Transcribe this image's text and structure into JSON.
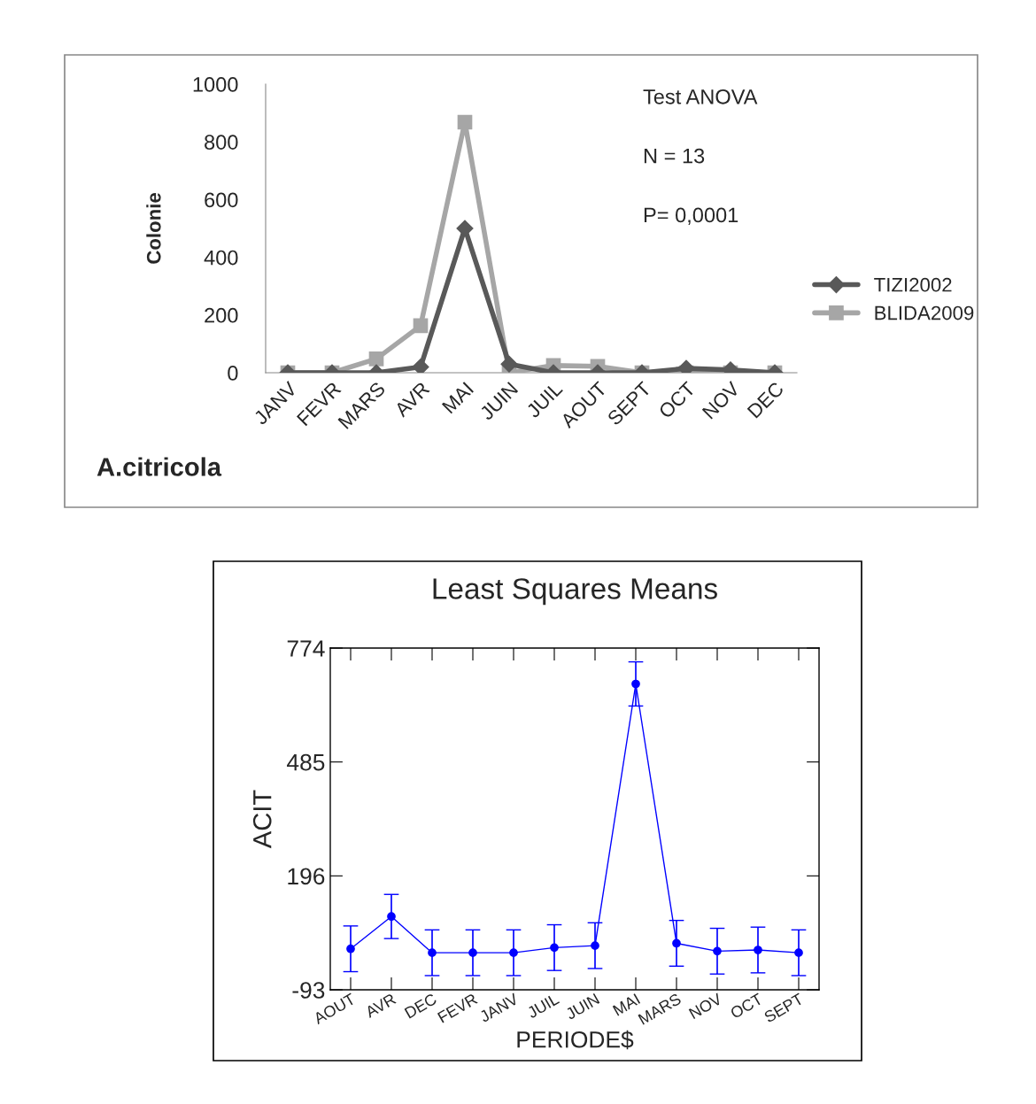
{
  "chart_data": [
    {
      "type": "line",
      "title": "A.citricola",
      "ylabel": "Colonie",
      "categories": [
        "JANV",
        "FEVR",
        "MARS",
        "AVR",
        "MAI",
        "JUIN",
        "JUIL",
        "AOUT",
        "SEPT",
        "OCT",
        "NOV",
        "DEC"
      ],
      "series": [
        {
          "name": "TIZI2002",
          "color": "#595959",
          "marker": "diamond",
          "values": [
            0,
            0,
            0,
            20,
            500,
            30,
            0,
            0,
            0,
            15,
            10,
            0
          ]
        },
        {
          "name": "BLIDA2009",
          "color": "#a6a6a6",
          "marker": "square",
          "values": [
            0,
            0,
            48,
            163,
            868,
            0,
            25,
            22,
            0,
            0,
            0,
            0
          ]
        }
      ],
      "ylim": [
        0,
        1000
      ],
      "yticks": [
        0,
        200,
        400,
        600,
        800,
        1000
      ],
      "grid": false,
      "legend": "right",
      "annotations": [
        "Test ANOVA",
        "N = 13",
        "P= 0,0001"
      ]
    },
    {
      "type": "line",
      "title": "Least Squares Means",
      "xlabel": "PERIODE$",
      "ylabel": "ACIT",
      "categories": [
        "AOUT",
        "AVR",
        "DEC",
        "FEVR",
        "JANV",
        "JUIL",
        "JUIN",
        "MAI",
        "MARS",
        "NOV",
        "OCT",
        "SEPT"
      ],
      "series": [
        {
          "color": "#0000ff",
          "values": [
            11,
            93,
            1,
            1,
            1,
            14,
            19,
            683,
            25,
            5,
            8,
            1
          ],
          "errors": [
            58,
            56,
            58,
            58,
            58,
            58,
            58,
            56,
            58,
            58,
            58,
            58
          ]
        }
      ],
      "marker": "circle",
      "ylim": [
        -93,
        774
      ],
      "yticks": [
        -93,
        196,
        485,
        774
      ],
      "grid": false,
      "legend": false
    }
  ]
}
